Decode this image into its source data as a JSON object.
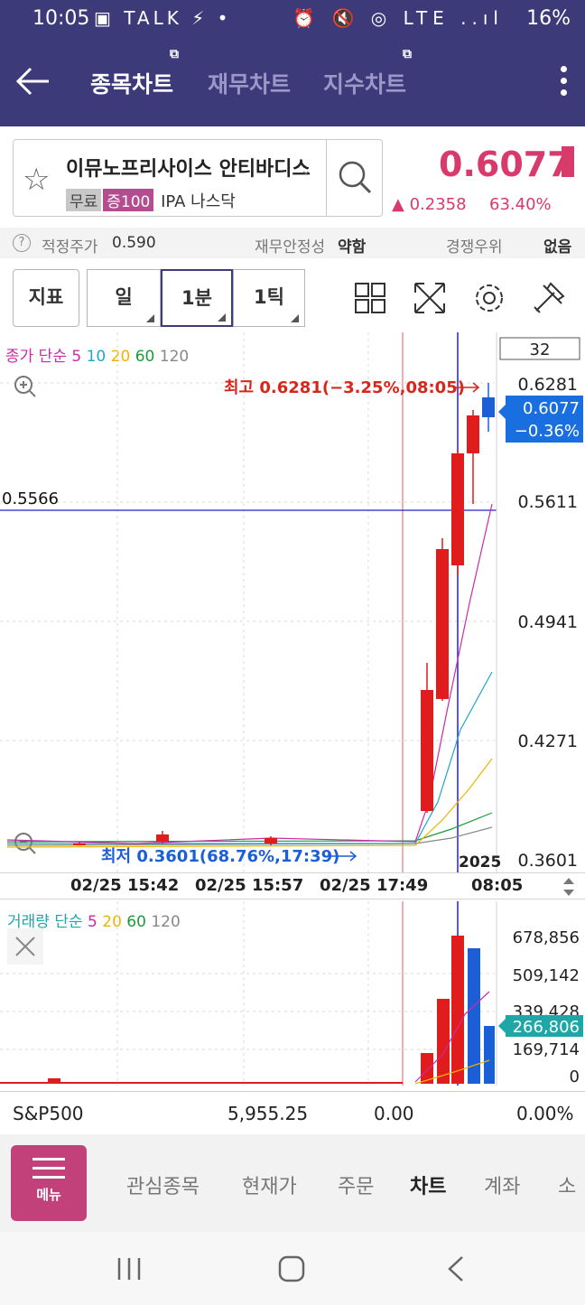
{
  "status_bar": {
    "time": "10:05",
    "battery": "16%",
    "left_icons": "▣ TALK ⚡ •",
    "right_icons": "⏰ 🔇 ◎ LTE ..ıl"
  },
  "header": {
    "tabs": [
      {
        "label": "종목차트",
        "active": true
      },
      {
        "label": "재무차트",
        "active": false
      },
      {
        "label": "지수차트",
        "active": false
      }
    ]
  },
  "stock": {
    "name": "이뮤노프리사이스 안티바디스",
    "tags": [
      "무료",
      "증100",
      "IPA",
      "나스닥"
    ],
    "price": "0.6077",
    "change": "▲ 0.2358",
    "change_pct": "63.40%"
  },
  "info_row": {
    "q_icon": "?",
    "fair_price_label": "적정주가",
    "fair_price": "0.590",
    "fin_stability_label": "재무안정성",
    "fin_stability": "약함",
    "competition_label": "경쟁우위",
    "competition": "없음"
  },
  "toolbar": {
    "indicator": "지표",
    "period_day": "일",
    "period_1min": "1분",
    "period_1tick": "1틱"
  },
  "chart": {
    "legend_label": "종가 단순",
    "ma_periods": [
      "5",
      "10",
      "20",
      "60",
      "120"
    ],
    "ma_colors": [
      "#cc2aa8",
      "#1fa7c7",
      "#f0b400",
      "#1d9a3a",
      "#888888"
    ],
    "count_box": "32",
    "high_label": "최고 0.6281(−3.25%,08:05)",
    "low_label": "최저 0.3601(68.76%,17:39)",
    "crosshair_price": "0.5566",
    "price_axis": [
      "0.6281",
      "0.5611",
      "0.4941",
      "0.4271",
      "0.3601"
    ],
    "current_price_tag": "0.6077",
    "current_pct_tag": "−0.36%",
    "year_label": "2025",
    "time_labels": [
      "02/25 15:42",
      "02/25 15:57",
      "02/25 17:49",
      "08:05"
    ]
  },
  "volume": {
    "legend_label": "거래량 단순",
    "ma_periods": [
      "5",
      "20",
      "60",
      "120"
    ],
    "axis": [
      "678,856",
      "509,142",
      "339,428",
      "169,714",
      "0"
    ],
    "current_tag": "266,806"
  },
  "index_row": {
    "name": "S&P500",
    "value": "5,955.25",
    "change": "0.00",
    "pct": "0.00%"
  },
  "bottom_menu": {
    "menu_label": "메뉴",
    "items": [
      "관심종목",
      "현재가",
      "주문",
      "차트",
      "계좌",
      "소"
    ]
  },
  "colors": {
    "brand": "#3d3a7a",
    "up": "#d83a6b",
    "menu_pink": "#c2417a",
    "candle_up": "#e01c1c",
    "candle_down": "#1a5fd6"
  }
}
